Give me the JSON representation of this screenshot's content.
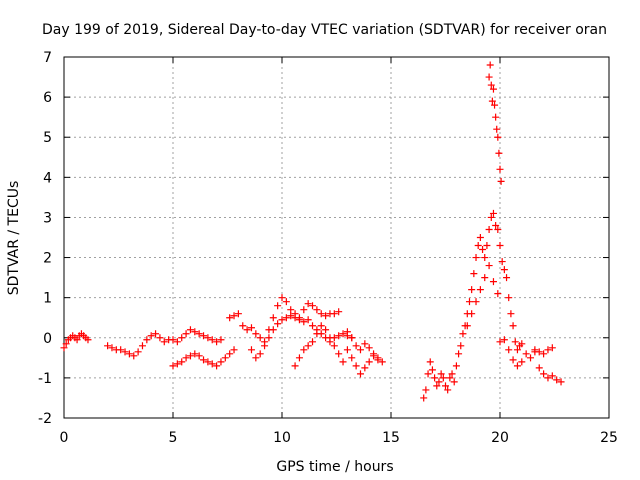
{
  "chart_data": {
    "type": "scatter",
    "title": "Day 199 of 2019, Sidereal Day-to-day VTEC variation (SDTVAR) for receiver oran",
    "xlabel": "GPS time / hours",
    "ylabel": "SDTVAR / TECUs",
    "xlim": [
      0,
      25
    ],
    "ylim": [
      -2,
      7
    ],
    "xticks": [
      "0",
      "5",
      "10",
      "15",
      "20",
      "25"
    ],
    "yticks": [
      "-2",
      "-1",
      "0",
      "1",
      "2",
      "3",
      "4",
      "5",
      "6",
      "7"
    ],
    "grid": true,
    "marker": "+",
    "color": "#ff0000",
    "series": [
      {
        "name": "seg1",
        "x": [
          0.0,
          0.1,
          0.2,
          0.3,
          0.4,
          0.5,
          0.6,
          0.7,
          0.8,
          0.9,
          1.0,
          1.1
        ],
        "y": [
          -0.25,
          -0.15,
          -0.05,
          0.0,
          0.05,
          0.0,
          -0.05,
          0.05,
          0.1,
          0.05,
          0.0,
          -0.05
        ]
      },
      {
        "name": "seg2",
        "x": [
          2.0,
          2.2,
          2.4,
          2.6,
          2.8,
          3.0,
          3.2,
          3.4,
          3.6,
          3.8,
          4.0,
          4.2,
          4.4,
          4.6,
          4.8,
          5.0,
          5.2,
          5.4,
          5.6,
          5.8,
          6.0,
          6.2,
          6.4,
          6.6,
          6.8,
          7.0,
          7.2
        ],
        "y": [
          -0.2,
          -0.25,
          -0.3,
          -0.3,
          -0.35,
          -0.4,
          -0.45,
          -0.35,
          -0.2,
          -0.05,
          0.05,
          0.1,
          0.0,
          -0.1,
          -0.05,
          -0.05,
          -0.1,
          0.0,
          0.1,
          0.2,
          0.15,
          0.1,
          0.05,
          0.0,
          -0.05,
          -0.1,
          -0.05
        ]
      },
      {
        "name": "seg3",
        "x": [
          5.0,
          5.2,
          5.4,
          5.6,
          5.8,
          6.0,
          6.2,
          6.4,
          6.6,
          6.8,
          7.0,
          7.2,
          7.4,
          7.6,
          7.8
        ],
        "y": [
          -0.7,
          -0.65,
          -0.6,
          -0.5,
          -0.45,
          -0.4,
          -0.45,
          -0.55,
          -0.6,
          -0.65,
          -0.7,
          -0.6,
          -0.5,
          -0.4,
          -0.3
        ]
      },
      {
        "name": "seg4",
        "x": [
          7.6,
          7.8,
          8.0,
          8.2,
          8.4,
          8.6,
          8.8,
          9.0,
          9.2,
          9.4,
          9.6,
          9.8,
          10.0,
          10.2,
          10.4,
          10.6,
          10.8,
          11.0,
          11.2,
          11.4,
          11.6,
          11.8,
          12.0,
          12.2,
          12.4,
          12.6
        ],
        "y": [
          0.5,
          0.55,
          0.6,
          0.3,
          0.2,
          0.25,
          0.1,
          0.0,
          -0.1,
          0.2,
          0.5,
          0.8,
          1.0,
          0.9,
          0.7,
          0.6,
          0.5,
          0.7,
          0.85,
          0.8,
          0.7,
          0.6,
          0.55,
          0.6,
          0.6,
          0.65
        ]
      },
      {
        "name": "seg5",
        "x": [
          8.6,
          8.8,
          9.0,
          9.2,
          9.4,
          9.6,
          9.8,
          10.0,
          10.2,
          10.4,
          10.6,
          10.8,
          11.0,
          11.2,
          11.4,
          11.6,
          11.8,
          12.0,
          12.2,
          12.4,
          12.6,
          12.8,
          13.0,
          13.2
        ],
        "y": [
          -0.3,
          -0.5,
          -0.4,
          -0.2,
          0.0,
          0.2,
          0.35,
          0.45,
          0.5,
          0.55,
          0.5,
          0.45,
          0.4,
          0.45,
          0.3,
          0.2,
          0.1,
          0.0,
          -0.1,
          0.0,
          0.05,
          0.1,
          0.05,
          0.0
        ]
      },
      {
        "name": "seg6",
        "x": [
          10.6,
          10.8,
          11.0,
          11.2,
          11.4,
          11.6,
          11.8,
          12.0,
          12.2,
          12.4,
          12.6,
          12.8,
          13.0,
          13.2,
          13.4,
          13.6,
          13.8,
          14.0,
          14.2,
          14.4,
          14.6
        ],
        "y": [
          -0.7,
          -0.5,
          -0.3,
          -0.2,
          -0.1,
          0.1,
          0.3,
          0.2,
          0.0,
          -0.2,
          -0.4,
          -0.6,
          -0.3,
          -0.5,
          -0.7,
          -0.9,
          -0.75,
          -0.6,
          -0.45,
          -0.55,
          -0.6
        ]
      },
      {
        "name": "seg7",
        "x": [
          13.0,
          13.2,
          13.4,
          13.6,
          13.8,
          14.0,
          14.2,
          14.4
        ],
        "y": [
          0.15,
          0.0,
          -0.2,
          -0.3,
          -0.15,
          -0.25,
          -0.4,
          -0.5
        ]
      },
      {
        "name": "seg8",
        "x": [
          16.5,
          16.6,
          16.7,
          16.8,
          16.9,
          17.0,
          17.1,
          17.2,
          17.3,
          17.4,
          17.5,
          17.6,
          17.7,
          17.8,
          17.9,
          18.0,
          18.1,
          18.2,
          18.3,
          18.4,
          18.5,
          18.6,
          18.7,
          18.8,
          18.9,
          19.0,
          19.1,
          19.2,
          19.3,
          19.4,
          19.5,
          19.6,
          19.7,
          19.8,
          19.9,
          20.0,
          20.1,
          20.2,
          20.3,
          20.4,
          20.5,
          20.6,
          20.7,
          20.8,
          20.9,
          21.0
        ],
        "y": [
          -1.5,
          -1.3,
          -0.9,
          -0.6,
          -0.8,
          -1.0,
          -1.2,
          -1.1,
          -0.9,
          -1.0,
          -1.2,
          -1.3,
          -1.0,
          -0.9,
          -1.1,
          -0.7,
          -0.4,
          -0.2,
          0.1,
          0.3,
          0.6,
          0.9,
          1.2,
          1.6,
          2.0,
          2.3,
          2.5,
          2.2,
          2.0,
          2.3,
          2.7,
          3.0,
          3.1,
          2.8,
          2.7,
          2.3,
          1.9,
          1.7,
          1.5,
          1.0,
          0.6,
          0.3,
          -0.1,
          -0.3,
          -0.2,
          -0.15
        ]
      },
      {
        "name": "seg9",
        "x": [
          18.5,
          18.7,
          18.9,
          19.1,
          19.3,
          19.5,
          19.7,
          19.9
        ],
        "y": [
          0.3,
          0.6,
          0.9,
          1.2,
          1.5,
          1.8,
          1.4,
          1.1
        ]
      },
      {
        "name": "seg10",
        "x": [
          19.5,
          19.55,
          19.6,
          19.65,
          19.7,
          19.75,
          19.8,
          19.85,
          19.9,
          19.95,
          20.0,
          20.05
        ],
        "y": [
          6.5,
          6.8,
          6.3,
          5.9,
          6.2,
          5.8,
          5.5,
          5.2,
          5.0,
          4.6,
          4.2,
          3.9
        ]
      },
      {
        "name": "seg11",
        "x": [
          20.0,
          20.2,
          20.4,
          20.6,
          20.8,
          21.0,
          21.2,
          21.4,
          21.6,
          21.8,
          22.0,
          22.2,
          22.4,
          22.6,
          22.8
        ],
        "y": [
          -0.1,
          -0.05,
          -0.3,
          -0.55,
          -0.7,
          -0.6,
          -0.4,
          -0.5,
          -0.35,
          -0.75,
          -0.9,
          -1.0,
          -0.95,
          -1.05,
          -1.1
        ]
      },
      {
        "name": "seg12",
        "x": [
          21.6,
          21.8,
          22.0,
          22.2,
          22.4
        ],
        "y": [
          -0.3,
          -0.35,
          -0.4,
          -0.3,
          -0.25
        ]
      }
    ]
  }
}
